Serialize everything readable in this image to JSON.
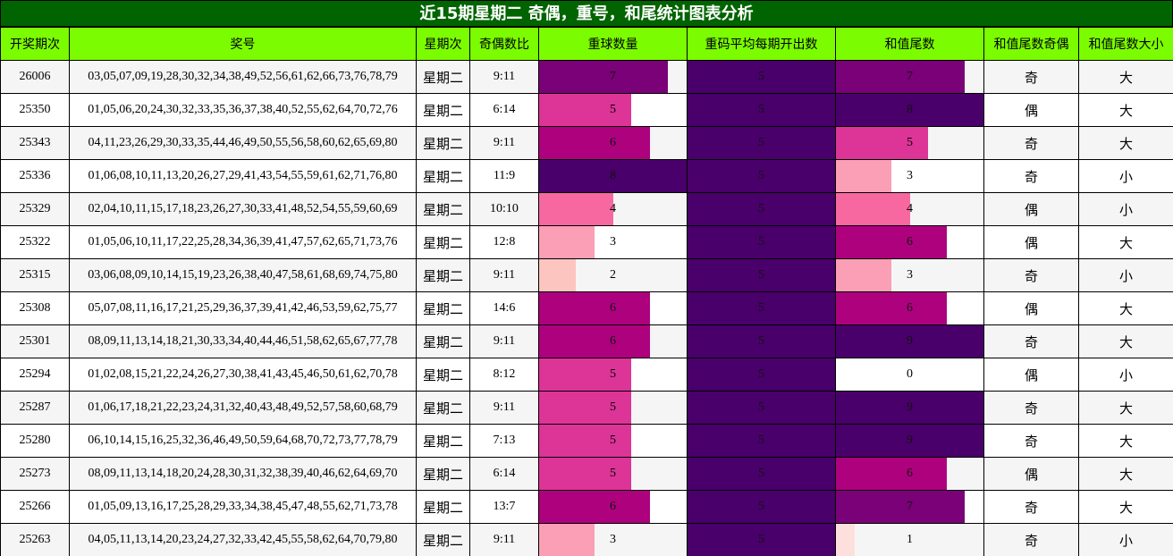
{
  "title": "近15期星期二 奇偶，重号，和尾统计图表分析",
  "headers": [
    "开奖期次",
    "奖号",
    "星期次",
    "奇偶数比",
    "重球数量",
    "重码平均每期开出数",
    "和值尾数",
    "和值尾数奇偶",
    "和值尾数大小"
  ],
  "colors": {
    "title_bg": "#006400",
    "header_bg": "#7cfc00",
    "bar_scale": [
      "#ffffff",
      "#fde0dd",
      "#fcc5c0",
      "#fa9fb5",
      "#f768a1",
      "#dd3497",
      "#ae017e",
      "#7a0177",
      "#49006a",
      "#49006a"
    ]
  },
  "chart_data": {
    "type": "table",
    "title": "近15期星期二 奇偶，重号，和尾统计图表分析",
    "bar_max": 8,
    "rows": [
      {
        "period": "26006",
        "numbers": "03,05,07,09,19,28,30,32,34,38,49,52,56,61,62,66,73,76,78,79",
        "weekday": "星期二",
        "odd_even": "9:11",
        "repeat": 7,
        "avg_repeat": 5,
        "tail": 7,
        "tail_parity": "奇",
        "tail_size": "大"
      },
      {
        "period": "25350",
        "numbers": "01,05,06,20,24,30,32,33,35,36,37,38,40,52,55,62,64,70,72,76",
        "weekday": "星期二",
        "odd_even": "6:14",
        "repeat": 5,
        "avg_repeat": 5,
        "tail": 8,
        "tail_parity": "偶",
        "tail_size": "大"
      },
      {
        "period": "25343",
        "numbers": "04,11,23,26,29,30,33,35,44,46,49,50,55,56,58,60,62,65,69,80",
        "weekday": "星期二",
        "odd_even": "9:11",
        "repeat": 6,
        "avg_repeat": 5,
        "tail": 5,
        "tail_parity": "奇",
        "tail_size": "大"
      },
      {
        "period": "25336",
        "numbers": "01,06,08,10,11,13,20,26,27,29,41,43,54,55,59,61,62,71,76,80",
        "weekday": "星期二",
        "odd_even": "11:9",
        "repeat": 8,
        "avg_repeat": 5,
        "tail": 3,
        "tail_parity": "奇",
        "tail_size": "小"
      },
      {
        "period": "25329",
        "numbers": "02,04,10,11,15,17,18,23,26,27,30,33,41,48,52,54,55,59,60,69",
        "weekday": "星期二",
        "odd_even": "10:10",
        "repeat": 4,
        "avg_repeat": 5,
        "tail": 4,
        "tail_parity": "偶",
        "tail_size": "小"
      },
      {
        "period": "25322",
        "numbers": "01,05,06,10,11,17,22,25,28,34,36,39,41,47,57,62,65,71,73,76",
        "weekday": "星期二",
        "odd_even": "12:8",
        "repeat": 3,
        "avg_repeat": 5,
        "tail": 6,
        "tail_parity": "偶",
        "tail_size": "大"
      },
      {
        "period": "25315",
        "numbers": "03,06,08,09,10,14,15,19,23,26,38,40,47,58,61,68,69,74,75,80",
        "weekday": "星期二",
        "odd_even": "9:11",
        "repeat": 2,
        "avg_repeat": 5,
        "tail": 3,
        "tail_parity": "奇",
        "tail_size": "小"
      },
      {
        "period": "25308",
        "numbers": "05,07,08,11,16,17,21,25,29,36,37,39,41,42,46,53,59,62,75,77",
        "weekday": "星期二",
        "odd_even": "14:6",
        "repeat": 6,
        "avg_repeat": 5,
        "tail": 6,
        "tail_parity": "偶",
        "tail_size": "大"
      },
      {
        "period": "25301",
        "numbers": "08,09,11,13,14,18,21,30,33,34,40,44,46,51,58,62,65,67,77,78",
        "weekday": "星期二",
        "odd_even": "9:11",
        "repeat": 6,
        "avg_repeat": 5,
        "tail": 9,
        "tail_parity": "奇",
        "tail_size": "大"
      },
      {
        "period": "25294",
        "numbers": "01,02,08,15,21,22,24,26,27,30,38,41,43,45,46,50,61,62,70,78",
        "weekday": "星期二",
        "odd_even": "8:12",
        "repeat": 5,
        "avg_repeat": 5,
        "tail": 0,
        "tail_parity": "偶",
        "tail_size": "小"
      },
      {
        "period": "25287",
        "numbers": "01,06,17,18,21,22,23,24,31,32,40,43,48,49,52,57,58,60,68,79",
        "weekday": "星期二",
        "odd_even": "9:11",
        "repeat": 5,
        "avg_repeat": 5,
        "tail": 9,
        "tail_parity": "奇",
        "tail_size": "大"
      },
      {
        "period": "25280",
        "numbers": "06,10,14,15,16,25,32,36,46,49,50,59,64,68,70,72,73,77,78,79",
        "weekday": "星期二",
        "odd_even": "7:13",
        "repeat": 5,
        "avg_repeat": 5,
        "tail": 9,
        "tail_parity": "奇",
        "tail_size": "大"
      },
      {
        "period": "25273",
        "numbers": "08,09,11,13,14,18,20,24,28,30,31,32,38,39,40,46,62,64,69,70",
        "weekday": "星期二",
        "odd_even": "6:14",
        "repeat": 5,
        "avg_repeat": 5,
        "tail": 6,
        "tail_parity": "偶",
        "tail_size": "大"
      },
      {
        "period": "25266",
        "numbers": "01,05,09,13,16,17,25,28,29,33,34,38,45,47,48,55,62,71,73,78",
        "weekday": "星期二",
        "odd_even": "13:7",
        "repeat": 6,
        "avg_repeat": 5,
        "tail": 7,
        "tail_parity": "奇",
        "tail_size": "大"
      },
      {
        "period": "25263",
        "numbers": "04,05,11,13,14,20,23,24,27,32,33,42,45,55,58,62,64,70,79,80",
        "weekday": "星期二",
        "odd_even": "9:11",
        "repeat": 3,
        "avg_repeat": 5,
        "tail": 1,
        "tail_parity": "奇",
        "tail_size": "小"
      }
    ]
  }
}
